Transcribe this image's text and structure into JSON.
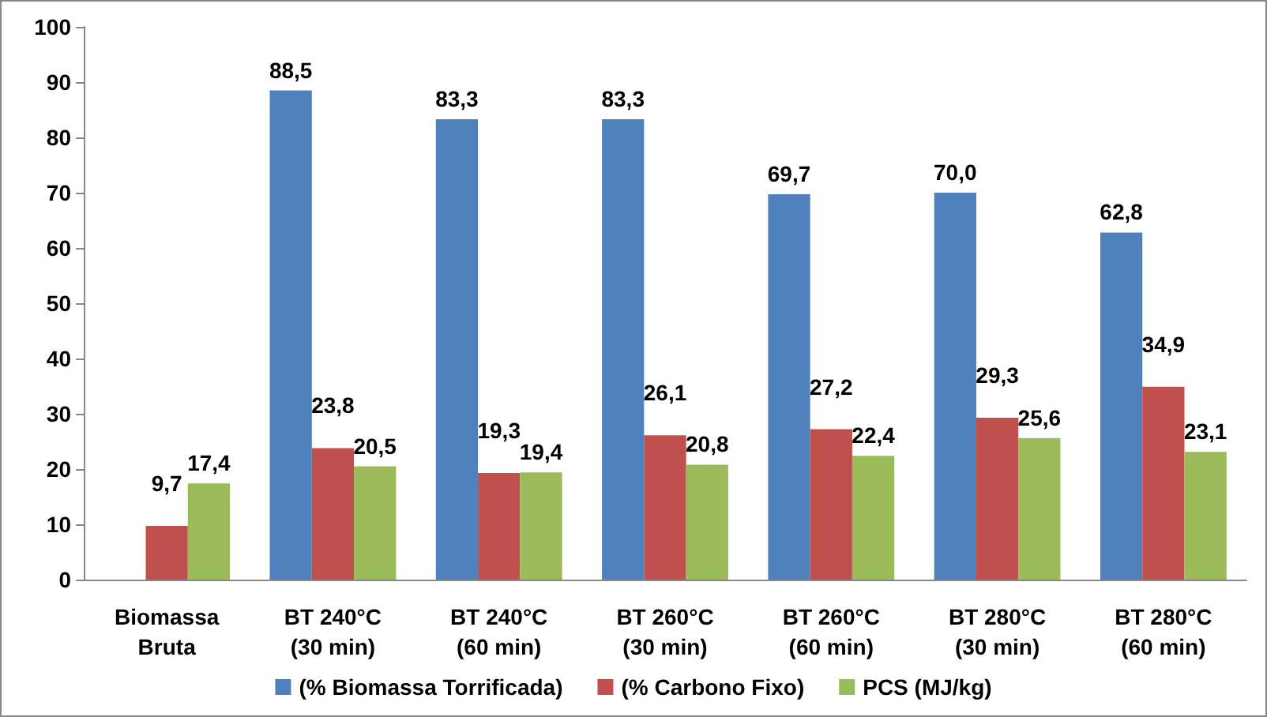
{
  "chart_data": {
    "type": "bar",
    "categories": [
      "Biomassa\nBruta",
      "BT 240°C\n(30 min)",
      "BT 240°C\n(60 min)",
      "BT 260°C\n(30 min)",
      "BT 260°C\n(60 min)",
      "BT 280°C\n(30 min)",
      "BT 280°C\n(60 min)"
    ],
    "series": [
      {
        "name": "(% Biomassa Torrificada)",
        "color": "#4f81bd",
        "values": [
          null,
          88.5,
          83.3,
          83.3,
          69.7,
          70.0,
          62.8
        ],
        "value_labels": [
          null,
          "88,5",
          "83,3",
          "83,3",
          "69,7",
          "70,0",
          "62,8"
        ]
      },
      {
        "name": "(% Carbono Fixo)",
        "color": "#c0504d",
        "values": [
          9.7,
          23.8,
          19.3,
          26.1,
          27.2,
          29.3,
          34.9
        ],
        "value_labels": [
          "9,7",
          "23,8",
          "19,3",
          "26,1",
          "27,2",
          "29,3",
          "34,9"
        ]
      },
      {
        "name": "PCS (MJ/kg)",
        "color": "#9bbb59",
        "values": [
          17.4,
          20.5,
          19.4,
          20.8,
          22.4,
          25.6,
          23.1
        ],
        "value_labels": [
          "17,4",
          "20,5",
          "19,4",
          "20,8",
          "22,4",
          "25,6",
          "23,1"
        ]
      }
    ],
    "ylim": [
      0,
      100
    ],
    "yticks": [
      0,
      10,
      20,
      30,
      40,
      50,
      60,
      70,
      80,
      90,
      100
    ],
    "grid": false,
    "legend": "bottom"
  }
}
